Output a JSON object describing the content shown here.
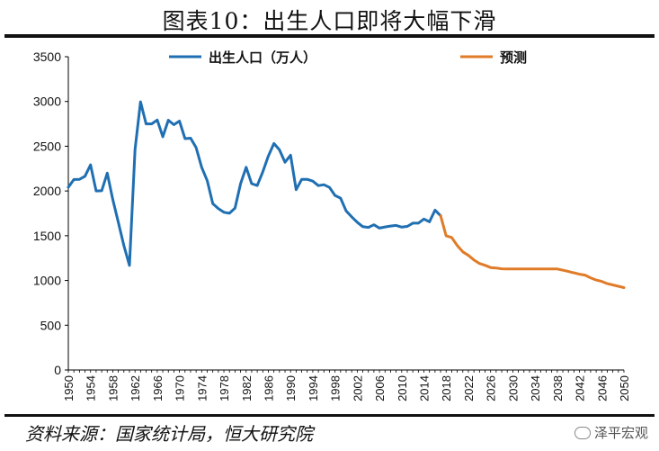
{
  "figure": {
    "title": "图表10：出生人口即将大幅下滑",
    "source": "资料来源：国家统计局，恒大研究院",
    "watermark": "泽平宏观",
    "watermark_icon": "wechat-icon"
  },
  "chart_data": {
    "type": "line",
    "title": "",
    "xlabel": "",
    "ylabel": "",
    "xlim": [
      1950,
      2050
    ],
    "ylim": [
      0,
      3500
    ],
    "yticks": [
      0,
      500,
      1000,
      1500,
      2000,
      2500,
      3000,
      3500
    ],
    "xticks": [
      1950,
      1954,
      1958,
      1962,
      1966,
      1970,
      1974,
      1978,
      1982,
      1986,
      1990,
      1994,
      1998,
      2002,
      2006,
      2010,
      2014,
      2018,
      2022,
      2026,
      2030,
      2034,
      2038,
      2042,
      2046,
      2050
    ],
    "legend_position": "top",
    "grid": false,
    "series": [
      {
        "name": "出生人口（万人）",
        "color": "#1f6fb2",
        "x": [
          1950,
          1951,
          1952,
          1953,
          1954,
          1955,
          1956,
          1957,
          1958,
          1959,
          1960,
          1961,
          1962,
          1963,
          1964,
          1965,
          1966,
          1967,
          1968,
          1969,
          1970,
          1971,
          1972,
          1973,
          1974,
          1975,
          1976,
          1977,
          1978,
          1979,
          1980,
          1981,
          1982,
          1983,
          1984,
          1985,
          1986,
          1987,
          1988,
          1989,
          1990,
          1991,
          1992,
          1993,
          1994,
          1995,
          1996,
          1997,
          1998,
          1999,
          2000,
          2001,
          2002,
          2003,
          2004,
          2005,
          2006,
          2007,
          2008,
          2009,
          2010,
          2011,
          2012,
          2013,
          2014,
          2015,
          2016,
          2017
        ],
        "y": [
          2042,
          2128,
          2130,
          2164,
          2292,
          2000,
          2002,
          2200,
          1907,
          1650,
          1389,
          1169,
          2463,
          2996,
          2750,
          2750,
          2793,
          2606,
          2790,
          2741,
          2781,
          2585,
          2590,
          2485,
          2265,
          2115,
          1858,
          1802,
          1762,
          1751,
          1808,
          2082,
          2265,
          2082,
          2061,
          2214,
          2391,
          2530,
          2460,
          2321,
          2400,
          2015,
          2130,
          2130,
          2110,
          2060,
          2070,
          2040,
          1950,
          1920,
          1777,
          1711,
          1650,
          1601,
          1593,
          1622,
          1585,
          1598,
          1608,
          1615,
          1596,
          1604,
          1640,
          1640,
          1687,
          1655,
          1786,
          1723
        ]
      },
      {
        "name": "预测",
        "color": "#e07b28",
        "x": [
          2017,
          2018,
          2019,
          2020,
          2021,
          2022,
          2023,
          2024,
          2025,
          2026,
          2027,
          2028,
          2029,
          2030,
          2031,
          2032,
          2033,
          2034,
          2035,
          2036,
          2037,
          2038,
          2039,
          2040,
          2041,
          2042,
          2043,
          2044,
          2045,
          2046,
          2047,
          2048,
          2049,
          2050
        ],
        "y": [
          1723,
          1500,
          1480,
          1390,
          1320,
          1280,
          1230,
          1190,
          1170,
          1145,
          1140,
          1130,
          1128,
          1128,
          1128,
          1128,
          1128,
          1128,
          1128,
          1128,
          1128,
          1128,
          1115,
          1100,
          1085,
          1070,
          1060,
          1030,
          1005,
          990,
          965,
          950,
          935,
          920
        ]
      }
    ]
  }
}
